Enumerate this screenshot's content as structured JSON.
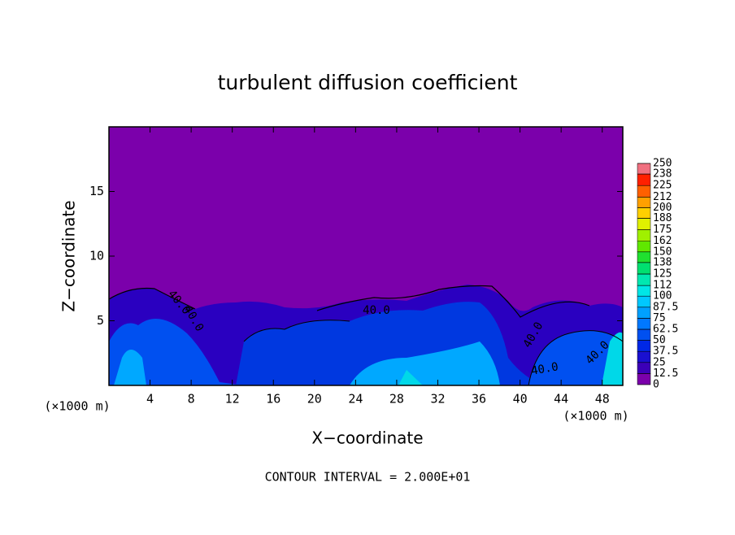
{
  "chart_data": {
    "type": "contour",
    "title": "turbulent diffusion coefficient",
    "xlabel": "X−coordinate",
    "ylabel": "Z−coordinate",
    "x_unit": "(×1000 m)",
    "y_unit": "(×1000 m)",
    "xlim": [
      0,
      50
    ],
    "ylim": [
      0,
      20
    ],
    "xticks": [
      4,
      8,
      12,
      16,
      20,
      24,
      28,
      32,
      36,
      40,
      44,
      48
    ],
    "yticks": [
      5,
      10,
      15
    ],
    "colorbar_ticks": [
      0,
      12.5,
      25,
      37.5,
      50,
      62.5,
      75,
      87.5,
      100,
      112,
      125,
      138,
      150,
      162,
      175,
      188,
      200,
      212,
      225,
      238,
      250
    ],
    "colorbar_colors": [
      "#7b00ab",
      "#3c00b8",
      "#1a10d0",
      "#0028e6",
      "#0050f0",
      "#0078ff",
      "#00a0ff",
      "#00c8ff",
      "#00e6e6",
      "#00e8b0",
      "#00e070",
      "#20e030",
      "#60e800",
      "#a0f000",
      "#e0f000",
      "#ffd000",
      "#ffa000",
      "#ff6000",
      "#ff2000",
      "#f07080"
    ],
    "contour_labels": [
      "40.0",
      "40.0",
      "40.0",
      "40.0",
      "40.0",
      "40.0"
    ],
    "footer": "CONTOUR INTERVAL = 2.000E+01"
  }
}
